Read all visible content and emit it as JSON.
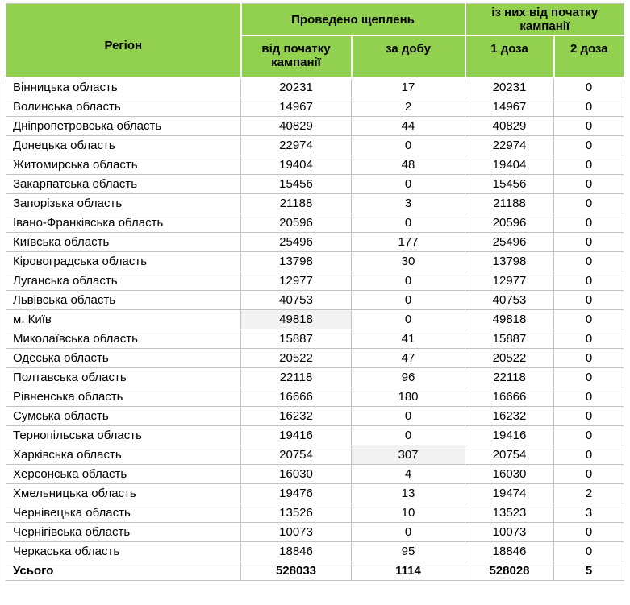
{
  "colors": {
    "header_bg": "#92D050",
    "border": "#c3c3c3",
    "highlight_bg": "#f2f2f2"
  },
  "chart_data": {
    "type": "table",
    "title": "",
    "columns": {
      "region": "Регіон",
      "group_performed": "Проведено щеплень",
      "group_since_start": "із них від початку кампанії",
      "sub_since_start": "від початку кампанії",
      "sub_per_day": "за добу",
      "sub_dose1": "1 доза",
      "sub_dose2": "2 доза"
    },
    "rows": [
      [
        "Вінницька область",
        20231,
        17,
        20231,
        0
      ],
      [
        "Волинська область",
        14967,
        2,
        14967,
        0
      ],
      [
        "Дніпропетровська область",
        40829,
        44,
        40829,
        0
      ],
      [
        "Донецька область",
        22974,
        0,
        22974,
        0
      ],
      [
        "Житомирська область",
        19404,
        48,
        19404,
        0
      ],
      [
        "Закарпатська область",
        15456,
        0,
        15456,
        0
      ],
      [
        "Запорізька область",
        21188,
        3,
        21188,
        0
      ],
      [
        "Івано-Франківська область",
        20596,
        0,
        20596,
        0
      ],
      [
        "Київська область",
        25496,
        177,
        25496,
        0
      ],
      [
        "Кіровоградська область",
        13798,
        30,
        13798,
        0
      ],
      [
        "Луганська область",
        12977,
        0,
        12977,
        0
      ],
      [
        "Львівська область",
        40753,
        0,
        40753,
        0
      ],
      [
        "м. Київ",
        49818,
        0,
        49818,
        0
      ],
      [
        "Миколаївська область",
        15887,
        41,
        15887,
        0
      ],
      [
        "Одеська область",
        20522,
        47,
        20522,
        0
      ],
      [
        "Полтавська область",
        22118,
        96,
        22118,
        0
      ],
      [
        "Рівненська область",
        16666,
        180,
        16666,
        0
      ],
      [
        "Сумська область",
        16232,
        0,
        16232,
        0
      ],
      [
        "Тернопільська область",
        19416,
        0,
        19416,
        0
      ],
      [
        "Харківська область",
        20754,
        307,
        20754,
        0
      ],
      [
        "Херсонська область",
        16030,
        4,
        16030,
        0
      ],
      [
        "Хмельницька область",
        19476,
        13,
        19474,
        2
      ],
      [
        "Чернівецька область",
        13526,
        10,
        13523,
        3
      ],
      [
        "Чернігівська область",
        10073,
        0,
        10073,
        0
      ],
      [
        "Черкаська область",
        18846,
        95,
        18846,
        0
      ]
    ],
    "total_row": [
      "Усього",
      528033,
      1114,
      528028,
      5
    ],
    "highlight_cells": [
      {
        "row": 12,
        "col": 1
      },
      {
        "row": 19,
        "col": 2
      }
    ]
  }
}
